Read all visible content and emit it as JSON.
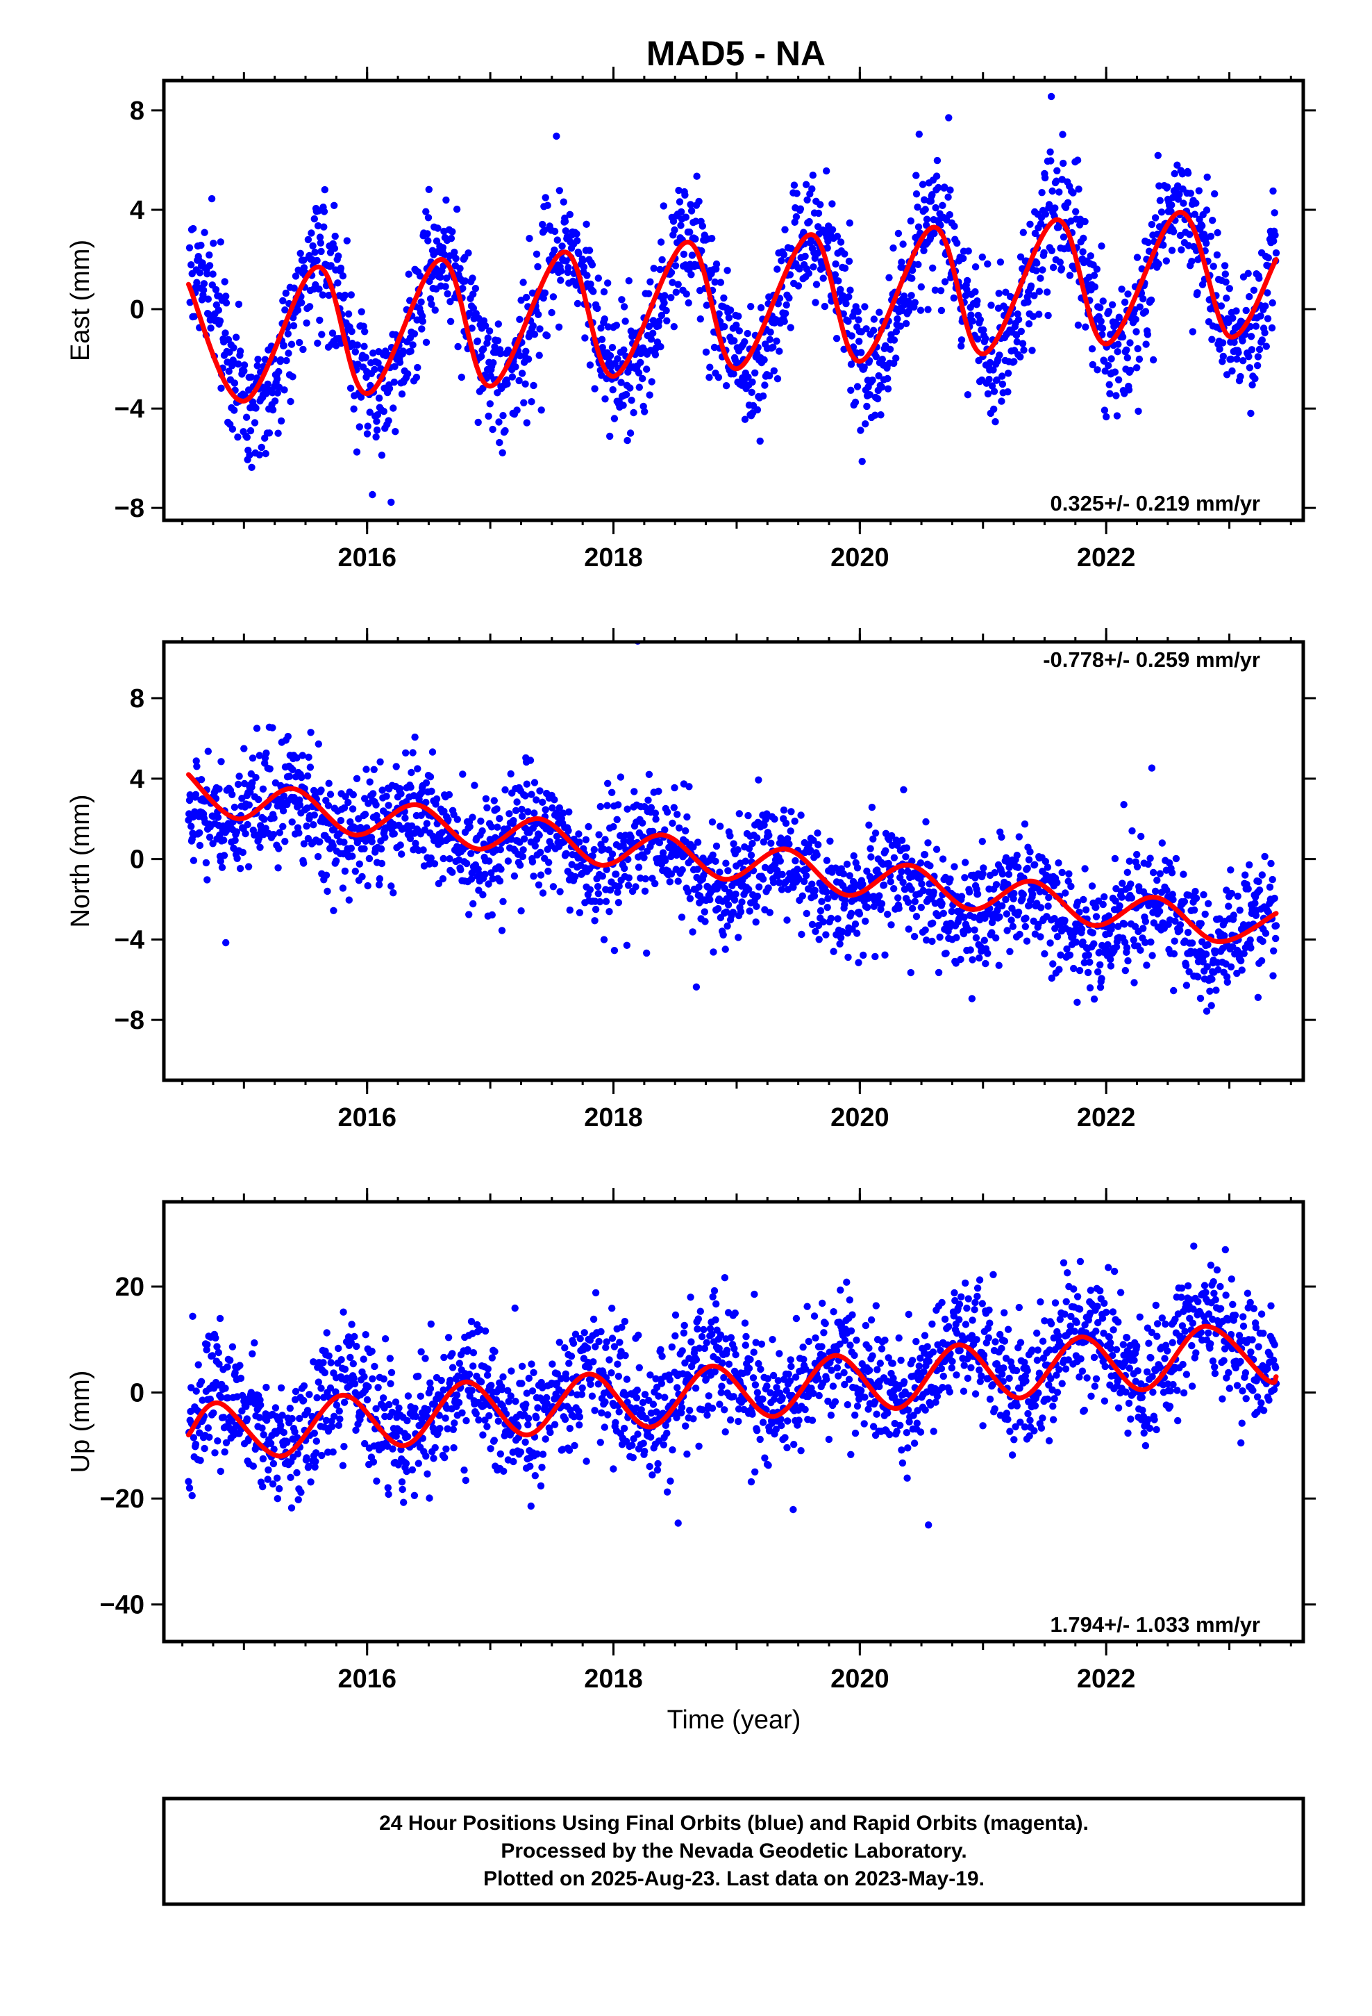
{
  "title": "MAD5 - NA",
  "chart_data": [
    {
      "type": "scatter",
      "ylabel": "East (mm)",
      "xlabel": "",
      "xlim": [
        2014.35,
        2023.6
      ],
      "ylim": [
        -8.5,
        9.2
      ],
      "xticks": [
        2016,
        2018,
        2020,
        2022
      ],
      "xtick_labels": [
        "2016",
        "2018",
        "2020",
        "2022"
      ],
      "yticks": [
        -8,
        -4,
        0,
        4,
        8
      ],
      "ytick_labels": [
        "−8",
        "−4",
        "0",
        "4",
        "8"
      ],
      "rate_label": "0.325+/- 0.219 mm/yr",
      "rate_position": "bottom-right",
      "series": [
        {
          "color": "#0000ff",
          "marker": "dot",
          "x_range": [
            2014.55,
            2023.38
          ],
          "trend": 0.325,
          "annual_amp": 2.8,
          "peak_fraction": 0.6,
          "intercept": -1.3,
          "noise_sd": 1.3
        },
        {
          "color": "#ff0000",
          "marker": "line"
        }
      ],
      "fit_curve": {
        "x": [
          2014.55,
          2015.0,
          2015.6,
          2016.0,
          2016.6,
          2017.0,
          2017.6,
          2018.0,
          2018.6,
          2019.0,
          2019.6,
          2020.0,
          2020.6,
          2021.0,
          2021.6,
          2022.0,
          2022.6,
          2023.0,
          2023.38
        ],
        "y": [
          1.0,
          -3.7,
          1.7,
          -3.4,
          2.0,
          -3.1,
          2.3,
          -2.7,
          2.7,
          -2.4,
          3.0,
          -2.1,
          3.3,
          -1.8,
          3.6,
          -1.4,
          3.9,
          -1.1,
          2.0
        ]
      }
    },
    {
      "type": "scatter",
      "ylabel": "North (mm)",
      "xlabel": "",
      "xlim": [
        2014.35,
        2023.6
      ],
      "ylim": [
        -11.0,
        10.8
      ],
      "xticks": [
        2016,
        2018,
        2020,
        2022
      ],
      "xtick_labels": [
        "2016",
        "2018",
        "2020",
        "2022"
      ],
      "yticks": [
        -8,
        -4,
        0,
        4,
        8
      ],
      "ytick_labels": [
        "−8",
        "−4",
        "0",
        "4",
        "8"
      ],
      "rate_label": "-0.778+/- 0.259 mm/yr",
      "rate_position": "top-right",
      "series": [
        {
          "color": "#0000ff",
          "marker": "dot",
          "x_range": [
            2014.55,
            2023.38
          ],
          "trend": -0.778,
          "annual_amp": 1.0,
          "peak_fraction": 0.35,
          "intercept": 3.0,
          "noise_sd": 1.4
        },
        {
          "color": "#ff0000",
          "marker": "line"
        }
      ],
      "fit_curve": {
        "x": [
          2014.55,
          2014.95,
          2015.4,
          2015.9,
          2016.4,
          2016.9,
          2017.4,
          2017.9,
          2018.4,
          2018.9,
          2019.4,
          2019.9,
          2020.4,
          2020.9,
          2021.4,
          2021.9,
          2022.4,
          2022.9,
          2023.38
        ],
        "y": [
          4.2,
          2.0,
          3.5,
          1.2,
          2.7,
          0.5,
          2.0,
          -0.3,
          1.2,
          -1.0,
          0.5,
          -1.8,
          -0.3,
          -2.5,
          -1.1,
          -3.3,
          -1.9,
          -4.1,
          -2.7
        ]
      }
    },
    {
      "type": "scatter",
      "ylabel": "Up (mm)",
      "xlabel": "Time (year)",
      "xlim": [
        2014.35,
        2023.6
      ],
      "ylim": [
        -47,
        36
      ],
      "xticks": [
        2016,
        2018,
        2020,
        2022
      ],
      "xtick_labels": [
        "2016",
        "2018",
        "2020",
        "2022"
      ],
      "yticks": [
        -40,
        -20,
        0,
        20
      ],
      "ytick_labels": [
        "−40",
        "−20",
        "0",
        "20"
      ],
      "rate_label": "1.794+/- 1.033 mm/yr",
      "rate_position": "bottom-right",
      "series": [
        {
          "color": "#0000ff",
          "marker": "dot",
          "x_range": [
            2014.55,
            2023.38
          ],
          "trend": 1.794,
          "annual_amp": 5.5,
          "peak_fraction": 0.82,
          "intercept": -6.5,
          "noise_sd": 6.0
        },
        {
          "color": "#ff0000",
          "marker": "line"
        }
      ],
      "fit_curve": {
        "x": [
          2014.55,
          2014.8,
          2015.3,
          2015.8,
          2016.3,
          2016.8,
          2017.3,
          2017.8,
          2018.3,
          2018.8,
          2019.3,
          2019.8,
          2020.3,
          2020.8,
          2021.3,
          2021.8,
          2022.3,
          2022.8,
          2023.3,
          2023.38
        ],
        "y": [
          -8.0,
          -2.0,
          -12.0,
          -0.5,
          -10.0,
          2.0,
          -8.0,
          3.5,
          -6.5,
          5.0,
          -4.5,
          7.0,
          -3.0,
          9.0,
          -1.0,
          10.5,
          0.5,
          12.5,
          2.5,
          3.0
        ]
      }
    }
  ],
  "footer": {
    "line1": "24 Hour Positions Using Final Orbits (blue) and Rapid Orbits (magenta).",
    "line2": "Processed by the Nevada Geodetic Laboratory.",
    "line3": "Plotted on 2025-Aug-23. Last data on 2023-May-19."
  }
}
